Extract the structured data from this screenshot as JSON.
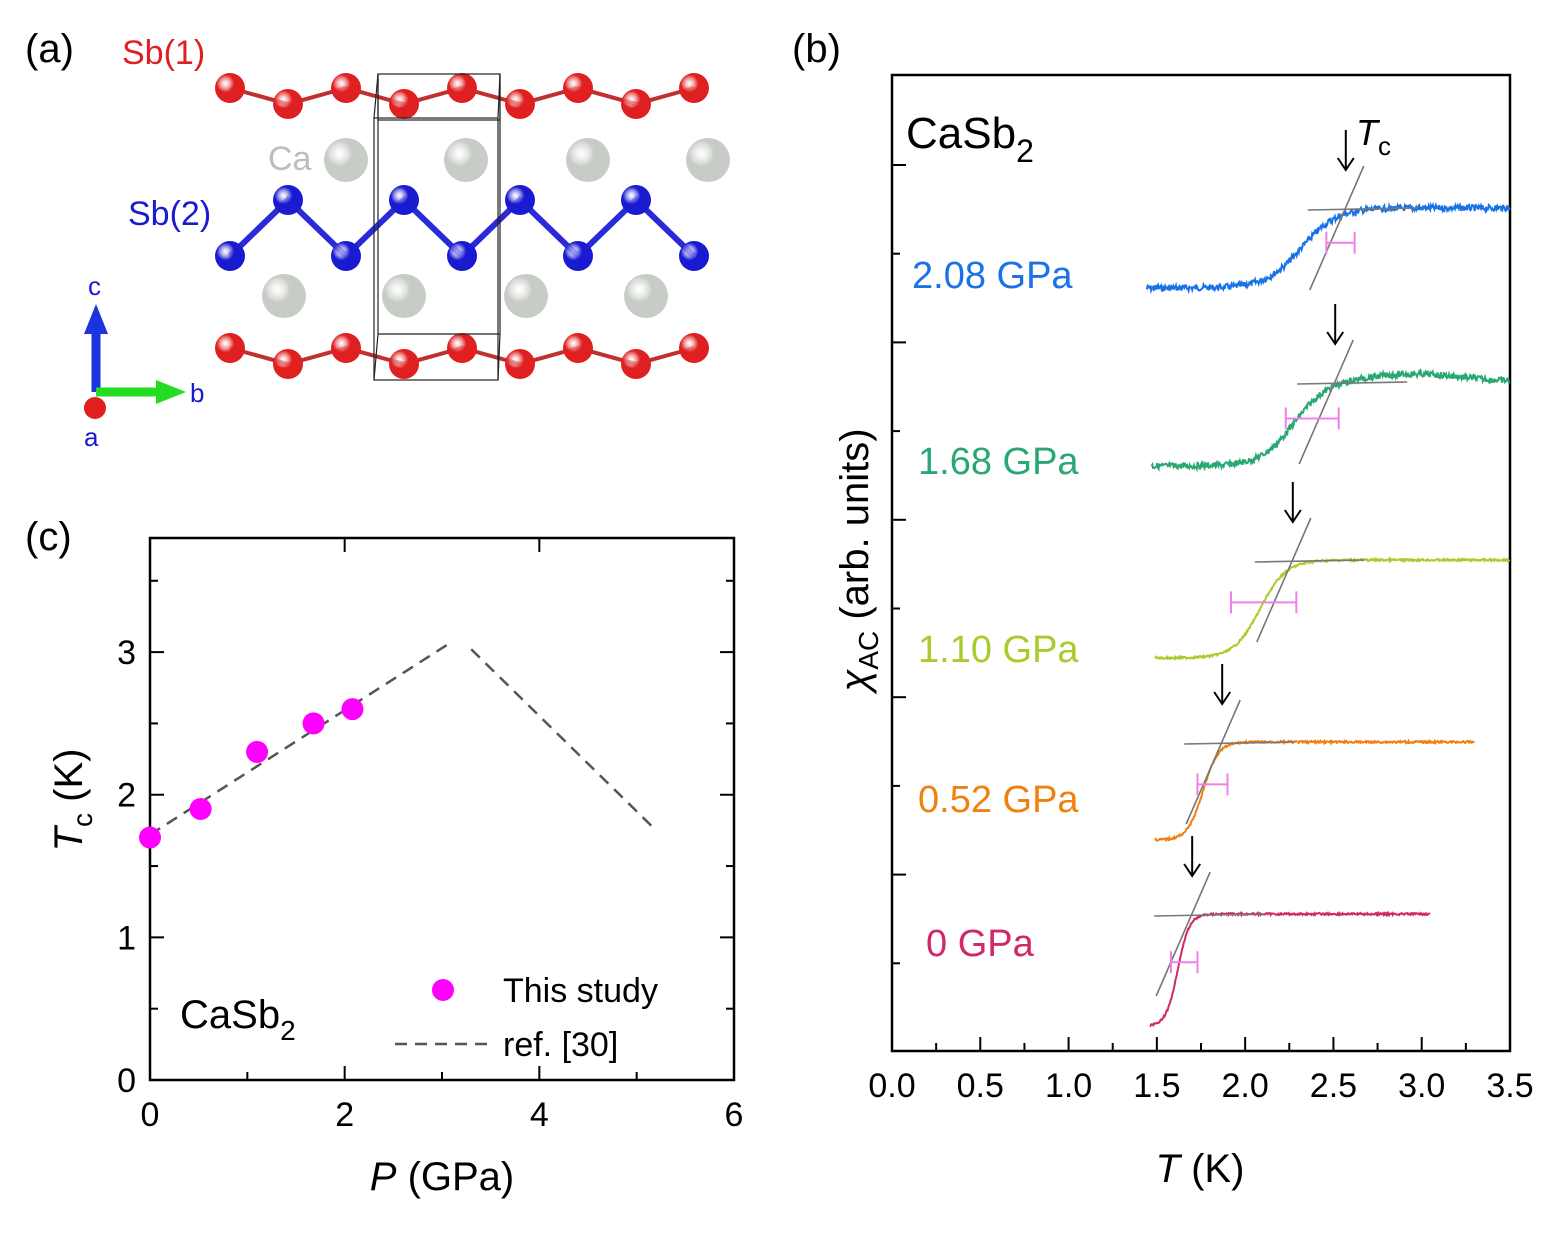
{
  "panels": {
    "a": "(a)",
    "b": "(b)",
    "c": "(c)"
  },
  "structure": {
    "sb1_label": "Sb(1)",
    "ca_label": "Ca",
    "sb2_label": "Sb(2)",
    "axis_c": "c",
    "axis_b": "b",
    "axis_a": "a",
    "colors": {
      "sb1": "#e02020",
      "sb2": "#1a1ad0",
      "ca": "#c8ccc6",
      "bond_sb1": "#c03030",
      "bond_sb2": "#2a2ad8"
    }
  },
  "chart_data": [
    {
      "id": "panel-b",
      "type": "line",
      "title": "CaSb",
      "title_sub": "2",
      "xlabel": "T",
      "xlabel_unit": "(K)",
      "ylabel_symbol": "χ",
      "ylabel_sub": "AC",
      "ylabel_rest": "(arb. units)",
      "tc_label": "T",
      "tc_sub": "c",
      "xlim": [
        0.0,
        3.5
      ],
      "xticks": [
        "0.0",
        "0.5",
        "1.0",
        "1.5",
        "2.0",
        "2.5",
        "3.0",
        "3.5"
      ],
      "series": [
        {
          "name": "2.08 GPa",
          "color": "#1a72e8",
          "tc": 2.57,
          "tc_err": [
            2.46,
            2.62
          ],
          "t_start": 1.44,
          "t_end": 3.5
        },
        {
          "name": "1.68 GPa",
          "color": "#2aa874",
          "tc": 2.51,
          "tc_err": [
            2.23,
            2.53
          ],
          "t_start": 1.47,
          "t_end": 3.5
        },
        {
          "name": "1.10 GPa",
          "color": "#a8cc2c",
          "tc": 2.27,
          "tc_err": [
            1.92,
            2.29
          ],
          "t_start": 1.49,
          "t_end": 3.5
        },
        {
          "name": "0.52 GPa",
          "color": "#f08010",
          "tc": 1.87,
          "tc_err": [
            1.73,
            1.9
          ],
          "t_start": 1.49,
          "t_end": 3.3
        },
        {
          "name": "0 GPa",
          "color": "#d02868",
          "tc": 1.7,
          "tc_err": [
            1.58,
            1.73
          ],
          "t_start": 1.46,
          "t_end": 3.05
        }
      ]
    },
    {
      "id": "panel-c",
      "type": "scatter",
      "xlabel": "P",
      "xlabel_unit": "(GPa)",
      "ylabel": "T",
      "ylabel_sub": "c",
      "ylabel_unit": "(K)",
      "xlim": [
        0,
        6
      ],
      "ylim": [
        0,
        3.8
      ],
      "xticks": [
        "0",
        "2",
        "4",
        "6"
      ],
      "yticks": [
        "0",
        "1",
        "2",
        "3"
      ],
      "annotation": "CaSb",
      "annotation_sub": "2",
      "series": [
        {
          "name": "This study",
          "color": "#ff00ff",
          "x": [
            0,
            0.52,
            1.1,
            1.68,
            2.08
          ],
          "y": [
            1.7,
            1.9,
            2.3,
            2.5,
            2.6
          ]
        },
        {
          "name": "ref. [30]",
          "color": "#555555",
          "dashed": true,
          "x": [
            0,
            3.05,
            3.3,
            5.2
          ],
          "y": [
            1.72,
            3.05,
            3.02,
            1.75
          ]
        }
      ]
    }
  ]
}
